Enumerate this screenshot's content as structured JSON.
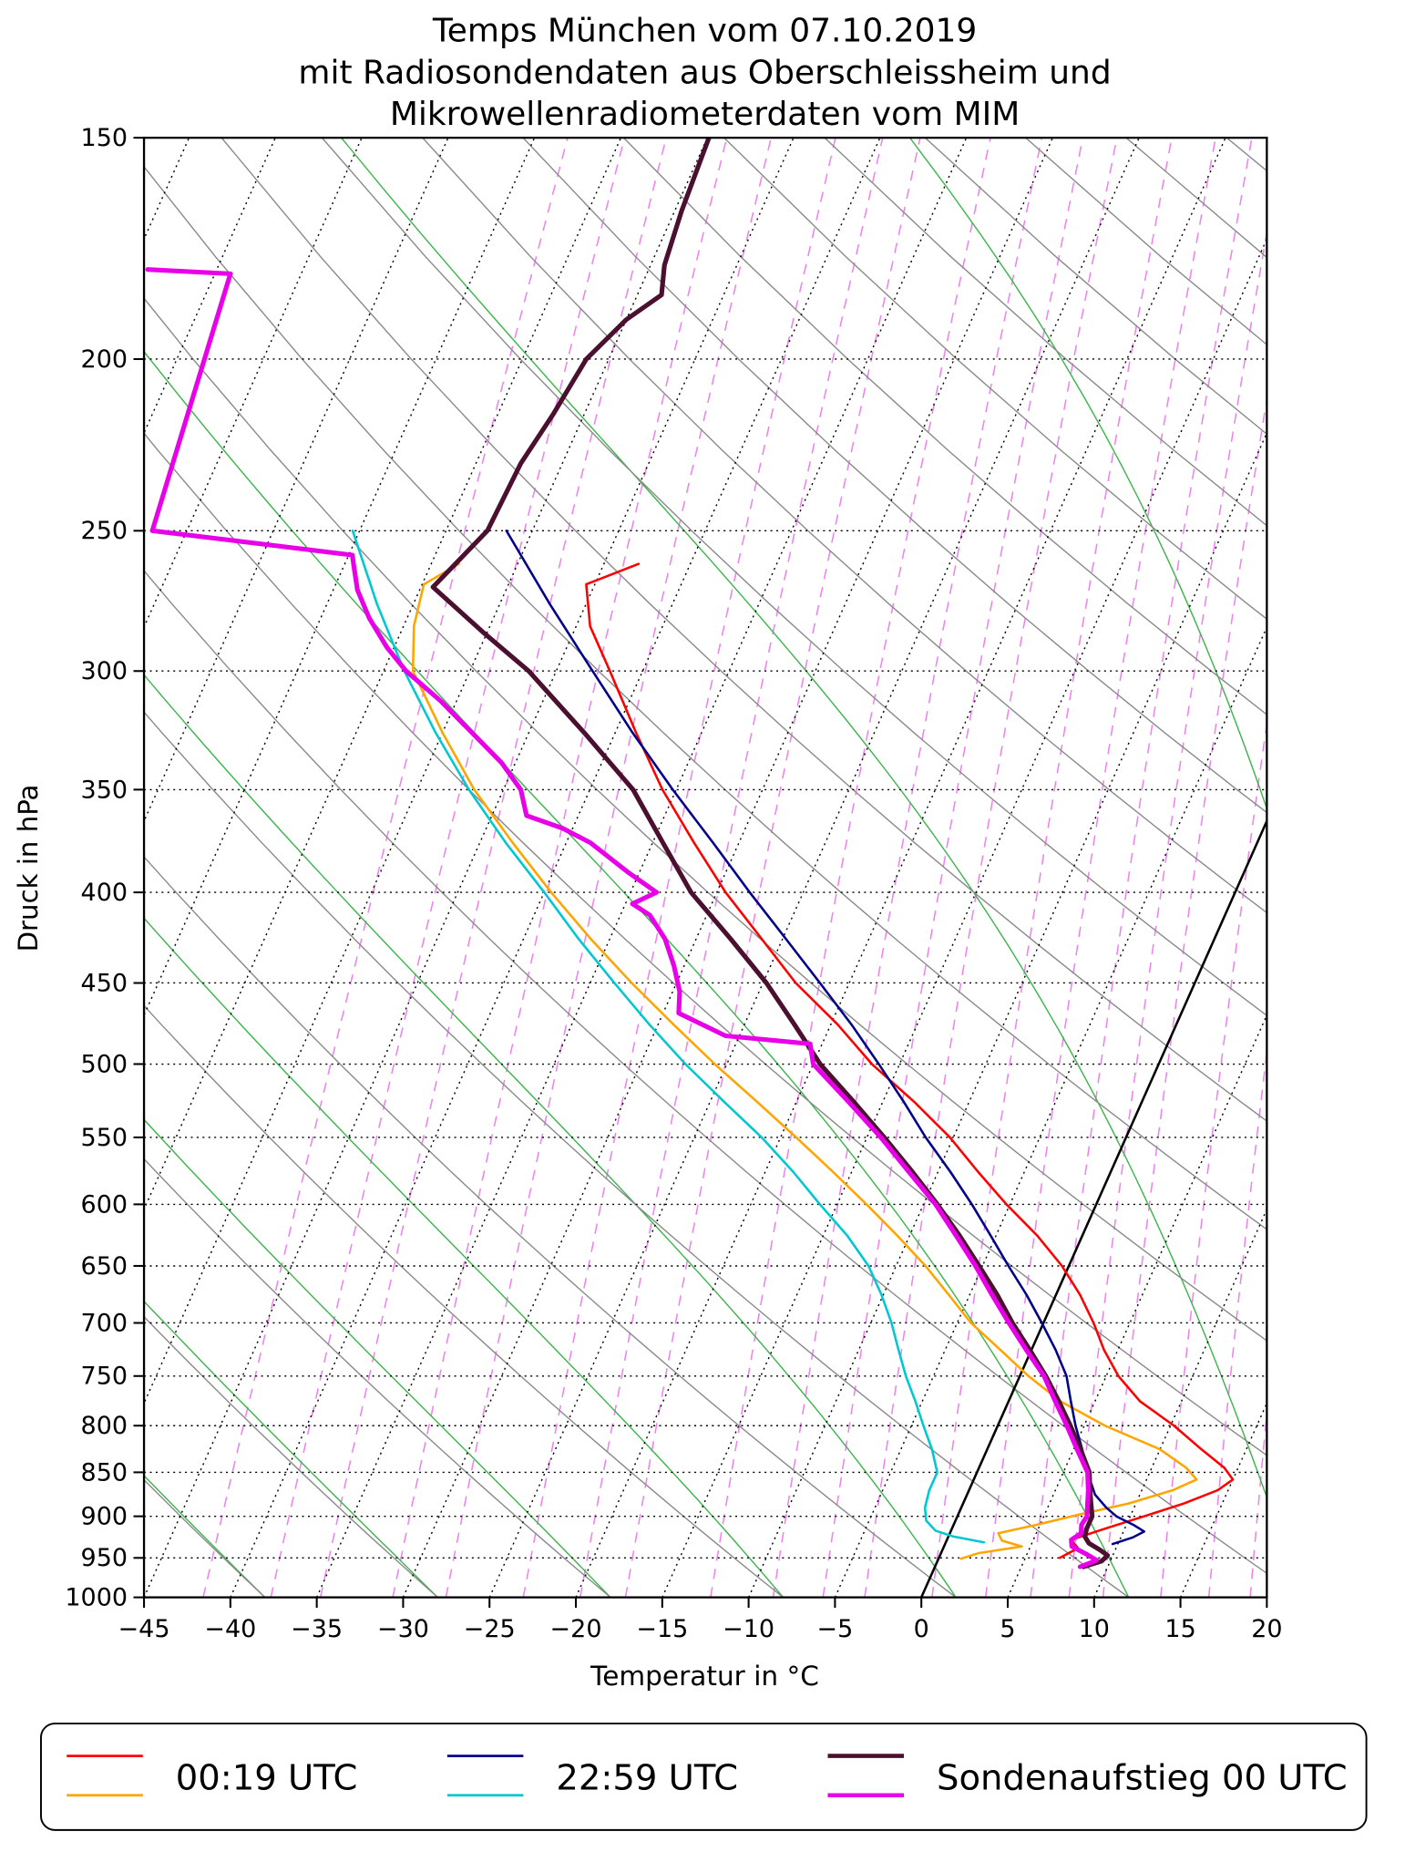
{
  "title_lines": [
    "Temps München vom 07.10.2019",
    "mit Radiosondendaten aus Oberschleissheim und",
    "Mikrowellenradiometerdaten vom MIM"
  ],
  "axes": {
    "xlabel": "Temperatur in °C",
    "ylabel": "Druck in hPa",
    "x_ticks": [
      -45,
      -40,
      -35,
      -30,
      -25,
      -20,
      -15,
      -10,
      -5,
      0,
      5,
      10,
      15,
      20
    ],
    "y_ticks": [
      150,
      200,
      250,
      300,
      350,
      400,
      450,
      500,
      550,
      600,
      650,
      700,
      750,
      800,
      850,
      900,
      950,
      1000
    ]
  },
  "legend": {
    "position": "bottom",
    "entries": [
      {
        "label": "00:19 UTC",
        "colors": [
          "#ff0000",
          "#ffa500"
        ],
        "line_width": 2.2
      },
      {
        "label": "22:59 UTC",
        "colors": [
          "#00008b",
          "#00c8d2"
        ],
        "line_width": 2.2
      },
      {
        "label": "Sondenaufstieg 00 UTC",
        "colors": [
          "#4b0f2f",
          "#e800e8"
        ],
        "line_width": 3.6
      }
    ]
  },
  "chart_data": {
    "type": "line",
    "diagram": "skew-T log-p sounding",
    "title": "Temps München vom 07.10.2019 mit Radiosondendaten aus Oberschleissheim und Mikrowellenradiometerdaten vom MIM",
    "xlabel": "Temperatur in °C",
    "ylabel": "Druck in hPa",
    "xlim": [
      -45,
      20
    ],
    "pressure_range": [
      150,
      1000
    ],
    "skew": 0.44,
    "legend_position": "bottom",
    "grid": {
      "isotherm_step_c": 5,
      "isotherm_color": "#000000",
      "zero_isotherm_color": "#000000",
      "dry_adiabat_color": "#8a8a8a",
      "dry_adiabats_c": [
        -38,
        -28,
        -18,
        -8,
        2,
        12,
        22,
        32,
        42,
        52,
        62,
        72,
        82,
        92,
        102,
        112,
        122,
        132,
        142,
        152,
        162
      ],
      "moist_adiabat_color": "#3ab54a",
      "moist_adiabats_c": [
        -58,
        -48,
        -38,
        -28,
        -18,
        -8,
        2,
        12,
        22,
        32,
        42,
        52
      ],
      "mixing_ratio_color": "#ee82ee",
      "mixing_ratio_g_kg": [
        0.1,
        0.15,
        0.2,
        0.3,
        0.4,
        0.6,
        0.8,
        1,
        1.5,
        2,
        2.5,
        3,
        4,
        5,
        6,
        7,
        8,
        10,
        12,
        14
      ]
    },
    "series": [
      {
        "legend": "00:19 UTC",
        "color": "#ff0000",
        "width": 2.0,
        "points_p_t": [
          [
            950,
            7.0
          ],
          [
            938,
            7.8
          ],
          [
            928,
            7.2
          ],
          [
            915,
            8.8
          ],
          [
            900,
            10.8
          ],
          [
            885,
            12.8
          ],
          [
            870,
            14.4
          ],
          [
            858,
            15.0
          ],
          [
            845,
            14.2
          ],
          [
            825,
            12.4
          ],
          [
            800,
            10.2
          ],
          [
            775,
            7.6
          ],
          [
            750,
            5.7
          ],
          [
            725,
            4.2
          ],
          [
            700,
            2.9
          ],
          [
            675,
            1.4
          ],
          [
            650,
            -0.4
          ],
          [
            625,
            -2.6
          ],
          [
            600,
            -5.2
          ],
          [
            575,
            -7.7
          ],
          [
            550,
            -10.2
          ],
          [
            525,
            -13.2
          ],
          [
            500,
            -16.6
          ],
          [
            475,
            -19.6
          ],
          [
            450,
            -23.1
          ],
          [
            425,
            -26.2
          ],
          [
            400,
            -29.5
          ],
          [
            375,
            -32.6
          ],
          [
            350,
            -35.8
          ],
          [
            325,
            -38.8
          ],
          [
            300,
            -41.9
          ],
          [
            283,
            -44.2
          ],
          [
            268,
            -45.5
          ],
          [
            261,
            -43.0
          ]
        ]
      },
      {
        "legend": "00:19 UTC",
        "color": "#ffa500",
        "width": 2.0,
        "points_p_t": [
          [
            951,
            1.3
          ],
          [
            944,
            2.2
          ],
          [
            936,
            4.5
          ],
          [
            929,
            3.2
          ],
          [
            920,
            2.8
          ],
          [
            910,
            4.8
          ],
          [
            898,
            7.0
          ],
          [
            885,
            9.6
          ],
          [
            870,
            11.8
          ],
          [
            858,
            12.9
          ],
          [
            845,
            12.0
          ],
          [
            825,
            10.0
          ],
          [
            800,
            6.2
          ],
          [
            775,
            3.0
          ],
          [
            750,
            0.5
          ],
          [
            725,
            -1.8
          ],
          [
            700,
            -4.2
          ],
          [
            675,
            -6.2
          ],
          [
            650,
            -8.3
          ],
          [
            625,
            -10.7
          ],
          [
            600,
            -13.3
          ],
          [
            575,
            -16.1
          ],
          [
            550,
            -19.1
          ],
          [
            525,
            -22.3
          ],
          [
            500,
            -25.7
          ],
          [
            475,
            -29.1
          ],
          [
            450,
            -32.6
          ],
          [
            425,
            -36.1
          ],
          [
            400,
            -39.6
          ],
          [
            375,
            -43.1
          ],
          [
            350,
            -46.7
          ],
          [
            325,
            -50.0
          ],
          [
            300,
            -53.3
          ],
          [
            283,
            -54.4
          ],
          [
            268,
            -54.9
          ],
          [
            261,
            -53.4
          ]
        ]
      },
      {
        "legend": "22:59 UTC",
        "color": "#00008b",
        "width": 2.0,
        "points_p_t": [
          [
            933,
            9.7
          ],
          [
            925,
            10.7
          ],
          [
            918,
            11.2
          ],
          [
            910,
            10.4
          ],
          [
            900,
            9.2
          ],
          [
            890,
            8.4
          ],
          [
            875,
            7.4
          ],
          [
            860,
            6.8
          ],
          [
            850,
            6.4
          ],
          [
            825,
            5.5
          ],
          [
            800,
            4.5
          ],
          [
            775,
            3.6
          ],
          [
            750,
            2.7
          ],
          [
            725,
            1.4
          ],
          [
            700,
            -0.1
          ],
          [
            675,
            -1.7
          ],
          [
            650,
            -3.5
          ],
          [
            625,
            -5.3
          ],
          [
            600,
            -7.2
          ],
          [
            575,
            -9.3
          ],
          [
            550,
            -11.6
          ],
          [
            525,
            -13.8
          ],
          [
            500,
            -16.2
          ],
          [
            475,
            -18.8
          ],
          [
            450,
            -21.7
          ],
          [
            425,
            -24.8
          ],
          [
            400,
            -28.1
          ],
          [
            375,
            -31.5
          ],
          [
            350,
            -35.2
          ],
          [
            325,
            -39.0
          ],
          [
            300,
            -42.9
          ],
          [
            275,
            -47.1
          ],
          [
            250,
            -51.5
          ]
        ]
      },
      {
        "legend": "22:59 UTC",
        "color": "#00c8d2",
        "width": 2.0,
        "points_p_t": [
          [
            931,
            2.2
          ],
          [
            924,
            0.3
          ],
          [
            917,
            -0.9
          ],
          [
            905,
            -1.7
          ],
          [
            890,
            -2.1
          ],
          [
            870,
            -2.3
          ],
          [
            850,
            -2.3
          ],
          [
            825,
            -3.2
          ],
          [
            800,
            -4.3
          ],
          [
            775,
            -5.4
          ],
          [
            750,
            -6.6
          ],
          [
            725,
            -7.7
          ],
          [
            700,
            -8.8
          ],
          [
            675,
            -10.1
          ],
          [
            650,
            -11.6
          ],
          [
            625,
            -13.6
          ],
          [
            600,
            -16.0
          ],
          [
            575,
            -18.4
          ],
          [
            550,
            -21.1
          ],
          [
            525,
            -24.2
          ],
          [
            500,
            -27.4
          ],
          [
            475,
            -30.5
          ],
          [
            450,
            -33.6
          ],
          [
            425,
            -36.8
          ],
          [
            400,
            -40.0
          ],
          [
            375,
            -43.5
          ],
          [
            350,
            -47.0
          ],
          [
            325,
            -50.4
          ],
          [
            300,
            -53.8
          ],
          [
            275,
            -57.1
          ],
          [
            250,
            -60.4
          ]
        ]
      },
      {
        "legend": "Sondenaufstieg 00 UTC",
        "color": "#4b0f2f",
        "width": 4.0,
        "points_p_t": [
          [
            961,
            8.6
          ],
          [
            954,
            9.5
          ],
          [
            947,
            9.7
          ],
          [
            940,
            9.1
          ],
          [
            932,
            8.3
          ],
          [
            924,
            7.9
          ],
          [
            915,
            7.8
          ],
          [
            900,
            7.8
          ],
          [
            885,
            7.4
          ],
          [
            870,
            7.0
          ],
          [
            850,
            6.5
          ],
          [
            825,
            5.4
          ],
          [
            800,
            4.2
          ],
          [
            775,
            2.9
          ],
          [
            750,
            1.5
          ],
          [
            725,
            -0.1
          ],
          [
            700,
            -1.8
          ],
          [
            675,
            -3.4
          ],
          [
            650,
            -5.2
          ],
          [
            625,
            -7.1
          ],
          [
            600,
            -9.2
          ],
          [
            575,
            -11.5
          ],
          [
            550,
            -14.0
          ],
          [
            525,
            -16.7
          ],
          [
            500,
            -19.6
          ],
          [
            475,
            -22.1
          ],
          [
            450,
            -24.8
          ],
          [
            425,
            -28.0
          ],
          [
            400,
            -31.5
          ],
          [
            375,
            -34.4
          ],
          [
            350,
            -37.5
          ],
          [
            325,
            -41.8
          ],
          [
            300,
            -46.6
          ],
          [
            285,
            -50.3
          ],
          [
            269,
            -54.3
          ],
          [
            250,
            -52.6
          ],
          [
            229,
            -52.4
          ],
          [
            215,
            -51.8
          ],
          [
            200,
            -51.3
          ],
          [
            190,
            -50.0
          ],
          [
            184,
            -48.6
          ],
          [
            177,
            -49.2
          ],
          [
            165,
            -49.6
          ],
          [
            150,
            -49.9
          ]
        ]
      },
      {
        "legend": "Sondenaufstieg 00 UTC",
        "color": "#e800e8",
        "width": 4.0,
        "points_p_t": [
          [
            961,
            8.4
          ],
          [
            953,
            9.2
          ],
          [
            945,
            8.4
          ],
          [
            936,
            7.4
          ],
          [
            928,
            7.2
          ],
          [
            920,
            7.6
          ],
          [
            910,
            7.4
          ],
          [
            900,
            7.5
          ],
          [
            885,
            7.2
          ],
          [
            870,
            6.9
          ],
          [
            850,
            6.4
          ],
          [
            825,
            5.2
          ],
          [
            800,
            4.0
          ],
          [
            775,
            2.7
          ],
          [
            750,
            1.4
          ],
          [
            725,
            -0.3
          ],
          [
            700,
            -2.0
          ],
          [
            675,
            -3.7
          ],
          [
            650,
            -5.4
          ],
          [
            625,
            -7.3
          ],
          [
            600,
            -9.3
          ],
          [
            575,
            -11.7
          ],
          [
            550,
            -14.2
          ],
          [
            525,
            -17.0
          ],
          [
            500,
            -20.0
          ],
          [
            487,
            -20.7
          ],
          [
            482,
            -25.8
          ],
          [
            468,
            -29.1
          ],
          [
            455,
            -29.6
          ],
          [
            440,
            -30.6
          ],
          [
            425,
            -31.8
          ],
          [
            412,
            -33.3
          ],
          [
            406,
            -34.6
          ],
          [
            400,
            -33.5
          ],
          [
            390,
            -35.6
          ],
          [
            375,
            -38.6
          ],
          [
            368,
            -40.6
          ],
          [
            362,
            -43.0
          ],
          [
            350,
            -44.0
          ],
          [
            338,
            -45.8
          ],
          [
            325,
            -48.3
          ],
          [
            312,
            -50.9
          ],
          [
            300,
            -53.7
          ],
          [
            291,
            -55.4
          ],
          [
            280,
            -57.2
          ],
          [
            270,
            -58.6
          ],
          [
            262,
            -59.4
          ],
          [
            258,
            -59.8
          ],
          [
            250,
            -72.0
          ],
          [
            179,
            -74.1
          ],
          [
            178,
            -79.0
          ]
        ]
      }
    ]
  }
}
